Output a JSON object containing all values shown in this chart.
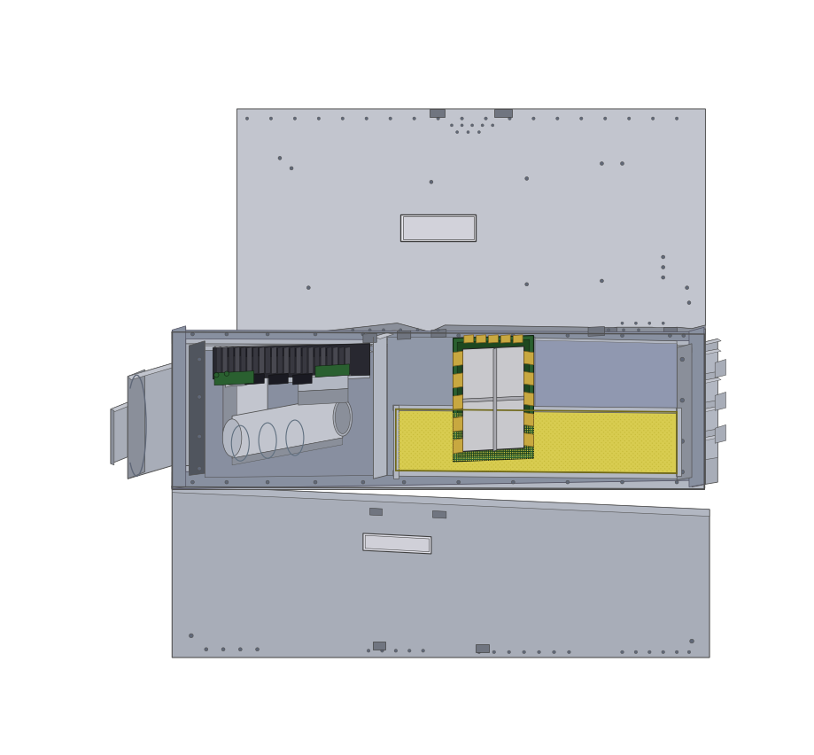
{
  "bg_color": "#ffffff",
  "gray_main": "#a8adb8",
  "gray_light": "#c2c5ce",
  "gray_dark": "#707580",
  "gray_med": "#8a8f9a",
  "gray_panel": "#b2b7c2",
  "gray_inner": "#9098a8",
  "gray_blue": "#9098b0",
  "gray_shadow": "#606570",
  "gray_side": "#7a8090",
  "yellow_mesh": "#d8cc50",
  "yellow_mesh2": "#c8bc3a",
  "green_pcb": "#2a6030",
  "green_pcb2": "#1e4820",
  "gold_connector": "#c8a840",
  "white_sensor": "#d8d8dc",
  "black_line": "#202020",
  "dark_inner": "#50555e",
  "rail_color": "#8890a0",
  "screw_color": "#606878",
  "figure_width": 9.2,
  "figure_height": 8.53,
  "dpi": 100
}
